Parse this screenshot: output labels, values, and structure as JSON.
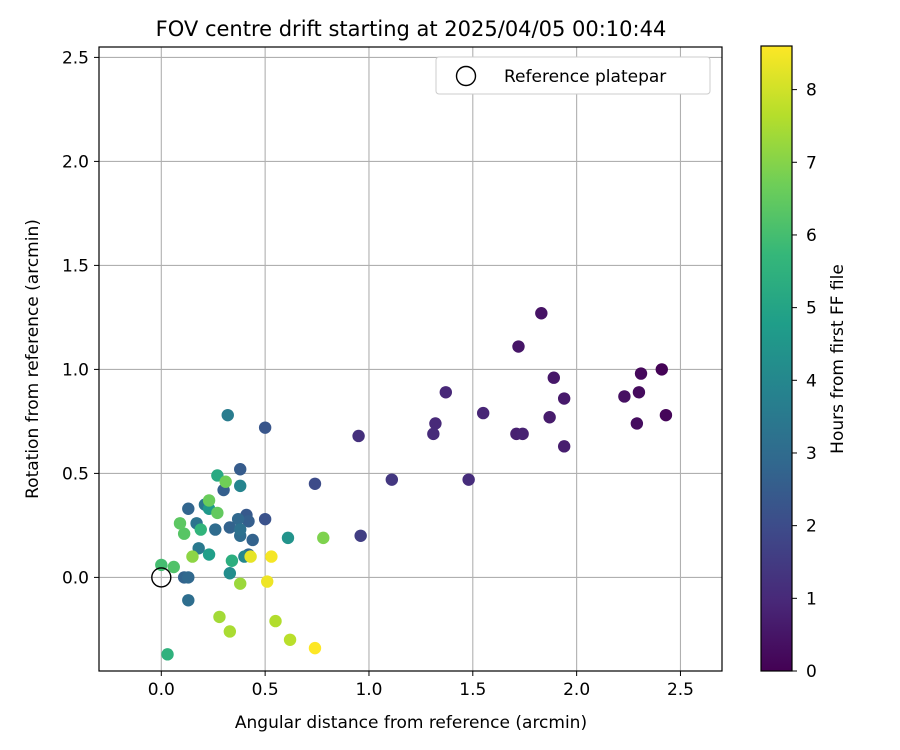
{
  "chart_data": {
    "type": "scatter",
    "title": "FOV centre drift starting at 2025/04/05 00:10:44",
    "xlabel": "Angular distance from reference (arcmin)",
    "ylabel": "Rotation from reference (arcmin)",
    "xlim": [
      -0.3,
      2.7
    ],
    "ylim": [
      -0.45,
      2.55
    ],
    "xticks": [
      0.0,
      0.5,
      1.0,
      1.5,
      2.0,
      2.5
    ],
    "yticks": [
      0.0,
      0.5,
      1.0,
      1.5,
      2.0,
      2.5
    ],
    "xtick_labels": [
      "0.0",
      "0.5",
      "1.0",
      "1.5",
      "2.0",
      "2.5"
    ],
    "ytick_labels": [
      "0.0",
      "0.5",
      "1.0",
      "1.5",
      "2.0",
      "2.5"
    ],
    "grid": true,
    "legend": {
      "label": "Reference platepar",
      "position": "top-right"
    },
    "reference_point": {
      "x": 0.0,
      "y": 0.0
    },
    "colorbar": {
      "label": "Hours from first FF file",
      "range": [
        0,
        8.6
      ],
      "ticks": [
        0,
        1,
        2,
        3,
        4,
        5,
        6,
        7,
        8
      ],
      "tick_labels": [
        "0",
        "1",
        "2",
        "3",
        "4",
        "5",
        "6",
        "7",
        "8"
      ],
      "colormap": "viridis",
      "stops": [
        "#440154",
        "#482878",
        "#3e4989",
        "#31688e",
        "#26828e",
        "#1f9e89",
        "#35b779",
        "#6ece58",
        "#b5de2b",
        "#fde725"
      ]
    },
    "points": [
      {
        "x": 2.41,
        "y": 1.0,
        "h": 0.05
      },
      {
        "x": 2.43,
        "y": 0.78,
        "h": 0.12
      },
      {
        "x": 2.31,
        "y": 0.98,
        "h": 0.18
      },
      {
        "x": 2.3,
        "y": 0.89,
        "h": 0.25
      },
      {
        "x": 2.29,
        "y": 0.74,
        "h": 0.3
      },
      {
        "x": 2.23,
        "y": 0.87,
        "h": 0.38
      },
      {
        "x": 1.83,
        "y": 1.27,
        "h": 0.45
      },
      {
        "x": 1.72,
        "y": 1.11,
        "h": 0.5
      },
      {
        "x": 1.89,
        "y": 0.96,
        "h": 0.55
      },
      {
        "x": 1.94,
        "y": 0.86,
        "h": 0.6
      },
      {
        "x": 1.87,
        "y": 0.77,
        "h": 0.65
      },
      {
        "x": 1.94,
        "y": 0.63,
        "h": 0.7
      },
      {
        "x": 1.71,
        "y": 0.69,
        "h": 0.75
      },
      {
        "x": 1.74,
        "y": 0.69,
        "h": 0.8
      },
      {
        "x": 1.55,
        "y": 0.79,
        "h": 0.9
      },
      {
        "x": 1.37,
        "y": 0.89,
        "h": 0.95
      },
      {
        "x": 1.32,
        "y": 0.74,
        "h": 1.0
      },
      {
        "x": 1.31,
        "y": 0.69,
        "h": 1.05
      },
      {
        "x": 1.48,
        "y": 0.47,
        "h": 1.1
      },
      {
        "x": 0.95,
        "y": 0.68,
        "h": 1.2
      },
      {
        "x": 1.11,
        "y": 0.47,
        "h": 1.4
      },
      {
        "x": 0.96,
        "y": 0.2,
        "h": 1.6
      },
      {
        "x": 0.74,
        "y": 0.45,
        "h": 2.0
      },
      {
        "x": 0.5,
        "y": 0.72,
        "h": 2.3
      },
      {
        "x": 0.5,
        "y": 0.28,
        "h": 2.2
      },
      {
        "x": 0.41,
        "y": 0.3,
        "h": 2.4
      },
      {
        "x": 0.42,
        "y": 0.27,
        "h": 2.6
      },
      {
        "x": 0.38,
        "y": 0.52,
        "h": 2.5
      },
      {
        "x": 0.44,
        "y": 0.18,
        "h": 2.7
      },
      {
        "x": 0.42,
        "y": 0.11,
        "h": 2.8
      },
      {
        "x": 0.37,
        "y": 0.28,
        "h": 2.9
      },
      {
        "x": 0.3,
        "y": 0.42,
        "h": 2.6
      },
      {
        "x": 0.26,
        "y": 0.23,
        "h": 3.0
      },
      {
        "x": 0.33,
        "y": 0.24,
        "h": 2.7
      },
      {
        "x": 0.38,
        "y": 0.2,
        "h": 3.0
      },
      {
        "x": 0.38,
        "y": 0.23,
        "h": 3.2
      },
      {
        "x": 0.13,
        "y": 0.33,
        "h": 2.8
      },
      {
        "x": 0.11,
        "y": 0.0,
        "h": 2.7
      },
      {
        "x": 0.13,
        "y": 0.0,
        "h": 2.9
      },
      {
        "x": 0.13,
        "y": -0.11,
        "h": 3.1
      },
      {
        "x": 0.17,
        "y": 0.26,
        "h": 3.3
      },
      {
        "x": 0.18,
        "y": 0.14,
        "h": 3.5
      },
      {
        "x": 0.21,
        "y": 0.35,
        "h": 3.4
      },
      {
        "x": 0.32,
        "y": 0.78,
        "h": 3.6
      },
      {
        "x": 0.38,
        "y": 0.44,
        "h": 3.9
      },
      {
        "x": 0.4,
        "y": 0.1,
        "h": 4.0
      },
      {
        "x": 0.61,
        "y": 0.19,
        "h": 4.4
      },
      {
        "x": 0.33,
        "y": 0.02,
        "h": 4.2
      },
      {
        "x": 0.23,
        "y": 0.33,
        "h": 4.6
      },
      {
        "x": 0.23,
        "y": 0.11,
        "h": 4.8
      },
      {
        "x": 0.27,
        "y": 0.49,
        "h": 5.2
      },
      {
        "x": 0.34,
        "y": 0.08,
        "h": 5.4
      },
      {
        "x": 0.19,
        "y": 0.23,
        "h": 5.6
      },
      {
        "x": 0.03,
        "y": -0.37,
        "h": 5.5
      },
      {
        "x": 0.0,
        "y": 0.06,
        "h": 6.0
      },
      {
        "x": 0.06,
        "y": 0.05,
        "h": 6.2
      },
      {
        "x": 0.11,
        "y": 0.21,
        "h": 6.3
      },
      {
        "x": 0.09,
        "y": 0.26,
        "h": 6.4
      },
      {
        "x": 0.23,
        "y": 0.37,
        "h": 6.6
      },
      {
        "x": 0.27,
        "y": 0.31,
        "h": 6.5
      },
      {
        "x": 0.31,
        "y": 0.46,
        "h": 6.7
      },
      {
        "x": 0.78,
        "y": 0.19,
        "h": 6.9
      },
      {
        "x": 0.15,
        "y": 0.1,
        "h": 7.1
      },
      {
        "x": 0.38,
        "y": -0.03,
        "h": 7.3
      },
      {
        "x": 0.28,
        "y": -0.19,
        "h": 7.4
      },
      {
        "x": 0.33,
        "y": -0.26,
        "h": 7.5
      },
      {
        "x": 0.55,
        "y": -0.21,
        "h": 7.6
      },
      {
        "x": 0.62,
        "y": -0.3,
        "h": 7.7
      },
      {
        "x": 0.43,
        "y": 0.1,
        "h": 8.3
      },
      {
        "x": 0.51,
        "y": -0.02,
        "h": 8.4
      },
      {
        "x": 0.53,
        "y": 0.1,
        "h": 8.5
      },
      {
        "x": 0.74,
        "y": -0.34,
        "h": 8.6
      }
    ]
  }
}
